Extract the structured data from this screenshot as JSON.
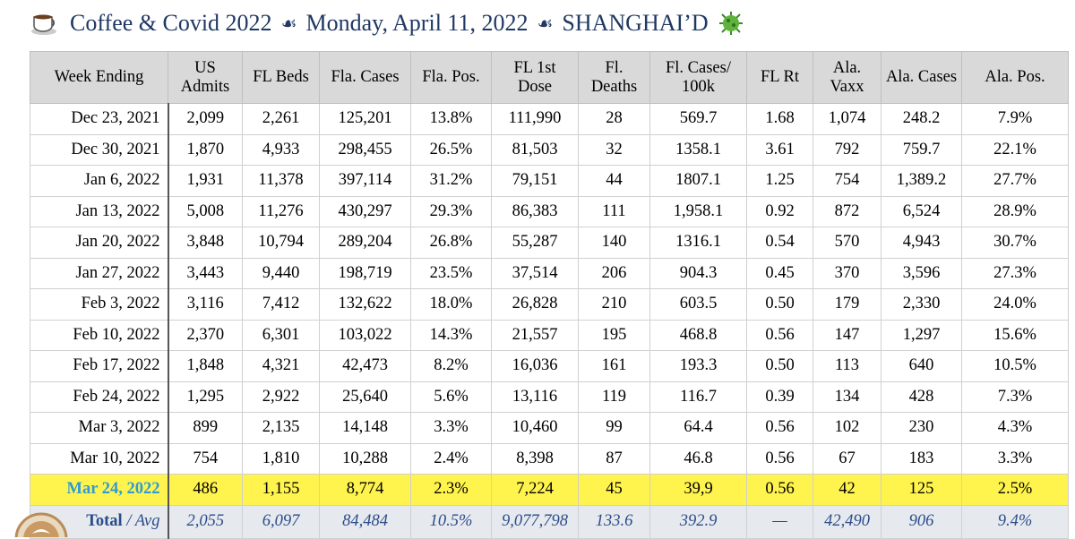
{
  "header": {
    "title_part1": "Coffee & Covid 2022",
    "separator": "☙",
    "title_part2": "Monday, April 11, 2022",
    "title_part3": "SHANGHAI’D"
  },
  "table": {
    "columns": [
      "Week Ending",
      "US Admits",
      "FL Beds",
      "Fla. Cases",
      "Fla. Pos.",
      "FL 1st Dose",
      "Fl. Deaths",
      "Fl. Cases/ 100k",
      "FL Rt",
      "Ala. Vaxx",
      "Ala. Cases",
      "Ala. Pos."
    ],
    "rows": [
      [
        "Dec 23, 2021",
        "2,099",
        "2,261",
        "125,201",
        "13.8%",
        "111,990",
        "28",
        "569.7",
        "1.68",
        "1,074",
        "248.2",
        "7.9%"
      ],
      [
        "Dec 30, 2021",
        "1,870",
        "4,933",
        "298,455",
        "26.5%",
        "81,503",
        "32",
        "1358.1",
        "3.61",
        "792",
        "759.7",
        "22.1%"
      ],
      [
        "Jan 6, 2022",
        "1,931",
        "11,378",
        "397,114",
        "31.2%",
        "79,151",
        "44",
        "1807.1",
        "1.25",
        "754",
        "1,389.2",
        "27.7%"
      ],
      [
        "Jan 13, 2022",
        "5,008",
        "11,276",
        "430,297",
        "29.3%",
        "86,383",
        "111",
        "1,958.1",
        "0.92",
        "872",
        "6,524",
        "28.9%"
      ],
      [
        "Jan 20, 2022",
        "3,848",
        "10,794",
        "289,204",
        "26.8%",
        "55,287",
        "140",
        "1316.1",
        "0.54",
        "570",
        "4,943",
        "30.7%"
      ],
      [
        "Jan 27, 2022",
        "3,443",
        "9,440",
        "198,719",
        "23.5%",
        "37,514",
        "206",
        "904.3",
        "0.45",
        "370",
        "3,596",
        "27.3%"
      ],
      [
        "Feb 3, 2022",
        "3,116",
        "7,412",
        "132,622",
        "18.0%",
        "26,828",
        "210",
        "603.5",
        "0.50",
        "179",
        "2,330",
        "24.0%"
      ],
      [
        "Feb 10, 2022",
        "2,370",
        "6,301",
        "103,022",
        "14.3%",
        "21,557",
        "195",
        "468.8",
        "0.56",
        "147",
        "1,297",
        "15.6%"
      ],
      [
        "Feb 17, 2022",
        "1,848",
        "4,321",
        "42,473",
        "8.2%",
        "16,036",
        "161",
        "193.3",
        "0.50",
        "113",
        "640",
        "10.5%"
      ],
      [
        "Feb 24, 2022",
        "1,295",
        "2,922",
        "25,640",
        "5.6%",
        "13,116",
        "119",
        "116.7",
        "0.39",
        "134",
        "428",
        "7.3%"
      ],
      [
        "Mar 3, 2022",
        "899",
        "2,135",
        "14,148",
        "3.3%",
        "10,460",
        "99",
        "64.4",
        "0.56",
        "102",
        "230",
        "4.3%"
      ],
      [
        "Mar 10, 2022",
        "754",
        "1,810",
        "10,288",
        "2.4%",
        "8,398",
        "87",
        "46.8",
        "0.56",
        "67",
        "183",
        "3.3%"
      ],
      [
        "Mar 24, 2022",
        "486",
        "1,155",
        "8,774",
        "2.3%",
        "7,224",
        "45",
        "39,9",
        "0.56",
        "42",
        "125",
        "2.5%"
      ]
    ],
    "total": {
      "label": "Total",
      "label_suffix": "/ Avg",
      "values": [
        "2,055",
        "6,097",
        "84,484",
        "10.5%",
        "9,077,798",
        "133.6",
        "392.9",
        "—",
        "42,490",
        "906",
        "9.4%"
      ]
    }
  }
}
